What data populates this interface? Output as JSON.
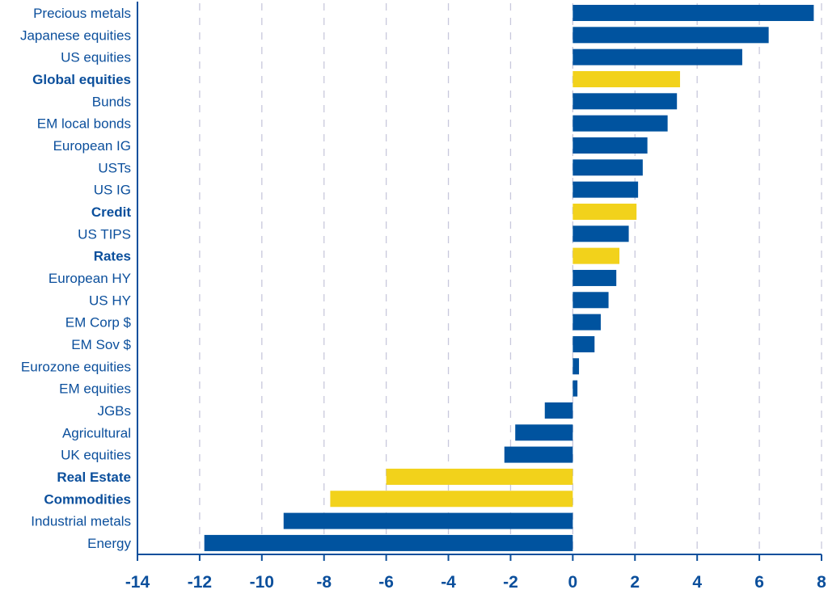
{
  "chart_data": {
    "type": "bar",
    "orientation": "horizontal",
    "title": "",
    "xlabel": "",
    "ylabel": "",
    "xlim": [
      -14,
      8
    ],
    "xticks": [
      -14,
      -12,
      -10,
      -8,
      -6,
      -4,
      -2,
      0,
      2,
      4,
      6,
      8
    ],
    "grid": "vertical dashed",
    "colors": {
      "asset": "#00539f",
      "aggregate": "#f2d21b",
      "text": "#0b4f9c",
      "grid": "#c8c8dc"
    },
    "categories": [
      "Precious metals",
      "Japanese equities",
      "US equities",
      "Global equities",
      "Bunds",
      "EM local bonds",
      "European IG",
      "USTs",
      "US IG",
      "Credit",
      "US TIPS",
      "Rates",
      "European HY",
      "US HY",
      "EM Corp $",
      "EM Sov $",
      "Eurozone  equities",
      "EM equities",
      "JGBs",
      "Agricultural",
      "UK equities",
      "Real Estate",
      "Commodities",
      "Industrial metals",
      "Energy"
    ],
    "values": [
      7.75,
      6.3,
      5.45,
      3.45,
      3.35,
      3.05,
      2.4,
      2.25,
      2.1,
      2.05,
      1.8,
      1.5,
      1.4,
      1.15,
      0.9,
      0.7,
      0.2,
      0.15,
      -0.9,
      -1.85,
      -2.2,
      -6.0,
      -7.8,
      -9.3,
      -11.85
    ],
    "highlighted": [
      "Global equities",
      "Credit",
      "Rates",
      "Real Estate",
      "Commodities"
    ]
  }
}
